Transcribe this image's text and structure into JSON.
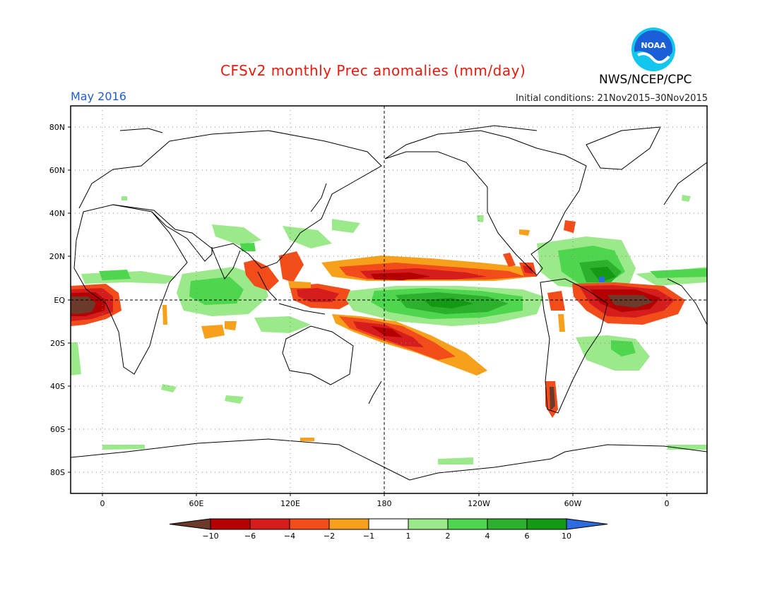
{
  "header": {
    "title": "CFSv2 monthly Prec anomalies (mm/day)",
    "agency": "NWS/NCEP/CPC",
    "valid_month": "May 2016",
    "initial_conditions": "Initial conditions: 21Nov2015–30Nov2015",
    "logo_text": "NOAA"
  },
  "axes": {
    "lat_labels": [
      "80N",
      "60N",
      "40N",
      "20N",
      "EQ",
      "20S",
      "40S",
      "60S",
      "80S"
    ],
    "lon_labels": [
      "0",
      "60E",
      "120E",
      "180",
      "120W",
      "60W",
      "0"
    ]
  },
  "colorbar": {
    "labels": [
      "-10",
      "-6",
      "-4",
      "-2",
      "-1",
      "1",
      "2",
      "4",
      "6",
      "10"
    ],
    "colors": [
      "#6b3a2a",
      "#b40000",
      "#d61d1d",
      "#f24c1a",
      "#f7a01c",
      "#ffffff",
      "#9be98a",
      "#4fd64f",
      "#2db02d",
      "#139913",
      "#2f6be0"
    ]
  },
  "palette": {
    "dark_brown": "#6b3a2a",
    "dark_red": "#b40000",
    "red": "#d61d1d",
    "orange_red": "#f24c1a",
    "orange": "#f7a01c",
    "light_green": "#9be98a",
    "green": "#4fd64f",
    "mid_green": "#2db02d",
    "dark_green": "#139913",
    "blue": "#2f6be0"
  }
}
